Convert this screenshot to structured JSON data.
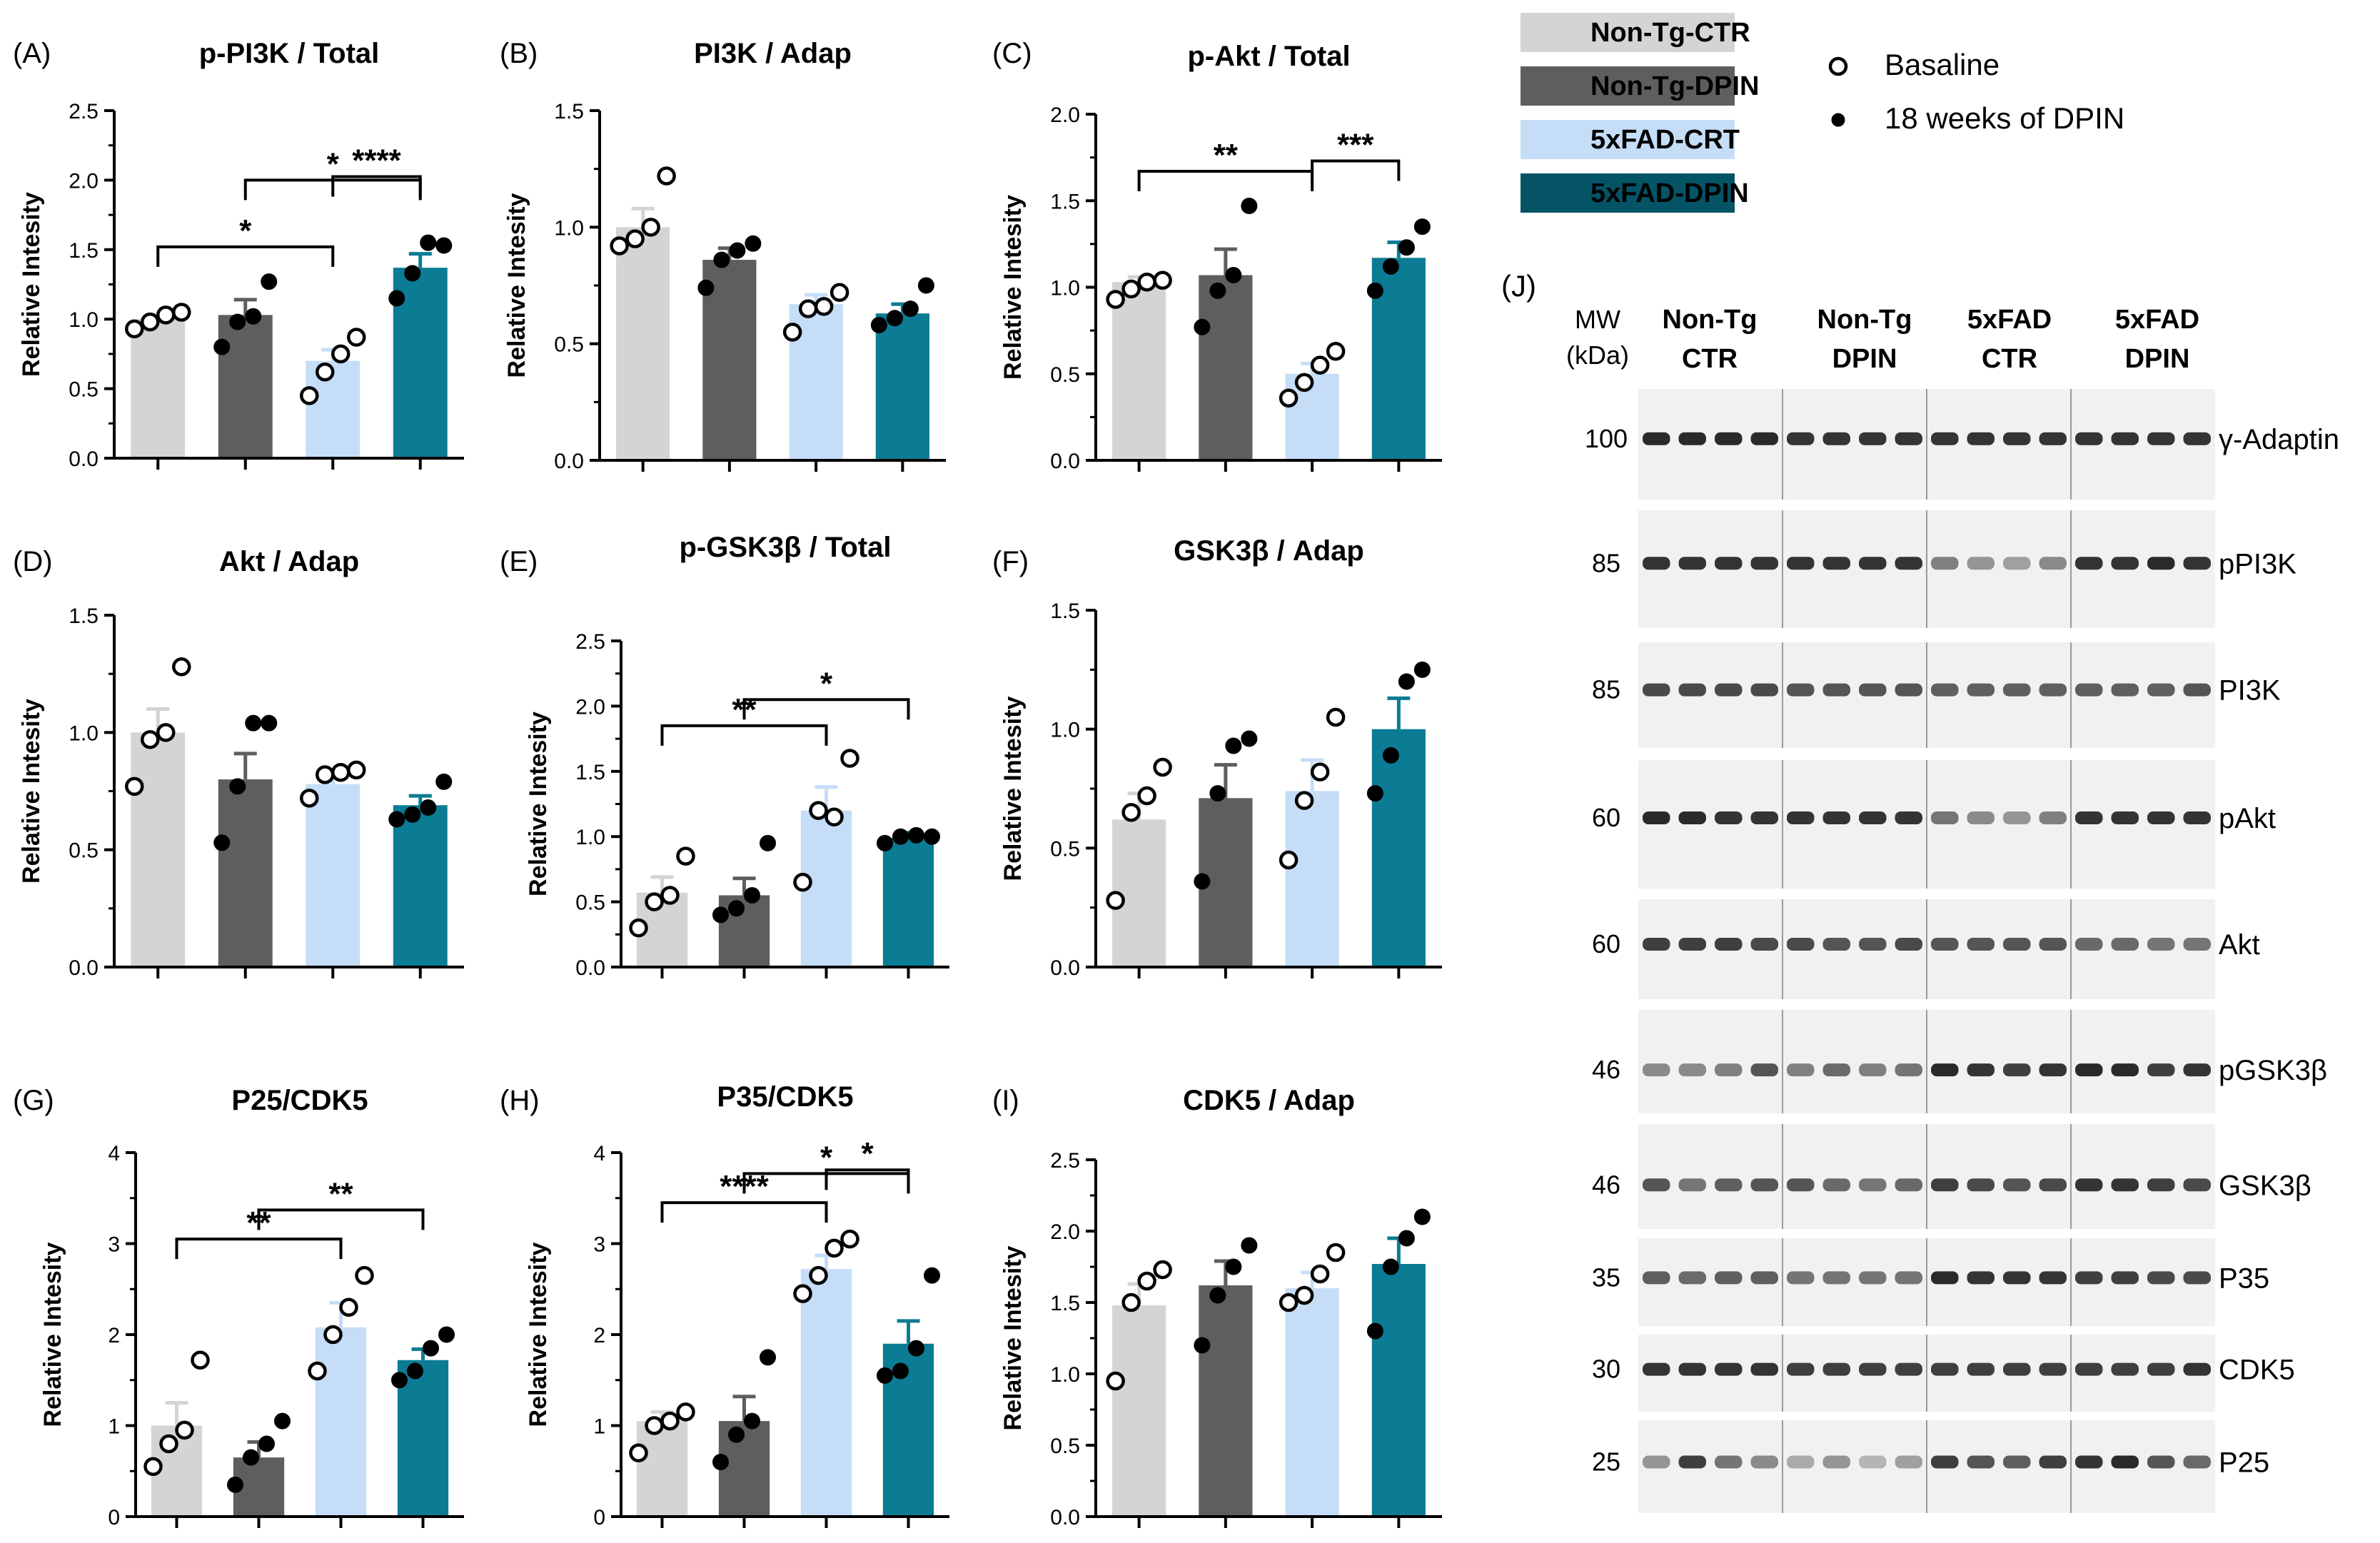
{
  "y_axis_label": "Relative Intesity",
  "groups": [
    "Non-Tg-CTR",
    "Non-Tg-DPIN",
    "5xFAD-CRT",
    "5xFAD-DPIN"
  ],
  "colors": {
    "g1": "#d4d4d4",
    "g2": "#5e5e5e",
    "g3": "#c5ddf7",
    "g4": "#0b7c93",
    "g4_dark": "#045466",
    "lane_sep": "#9a9a9a"
  },
  "legend": {
    "groups": [
      {
        "label": "Non-Tg-CTR",
        "color": "#d4d4d4"
      },
      {
        "label": "Non-Tg-DPIN",
        "color": "#5e5e5e"
      },
      {
        "label": "5xFAD-CRT",
        "color": "#c5ddf7"
      },
      {
        "label": "5xFAD-DPIN",
        "color": "#045466"
      }
    ],
    "markers": [
      {
        "label": "Basaline",
        "marker": "open-circle"
      },
      {
        "label": "18 weeks of DPIN",
        "marker": "filled-circle"
      }
    ]
  },
  "chart_data": [
    {
      "panel": "(A)",
      "title": "p-PI3K / Total",
      "type": "bar",
      "ylim": [
        0,
        2.5
      ],
      "yticks": [
        "0.0",
        "0.5",
        "1.0",
        "1.5",
        "2.0",
        "2.5"
      ],
      "means": [
        1.0,
        1.03,
        0.7,
        1.37
      ],
      "sem": [
        0.03,
        0.11,
        0.08,
        0.1
      ],
      "points": [
        [
          0.93,
          0.98,
          1.03,
          1.05
        ],
        [
          0.8,
          0.98,
          1.02,
          1.27
        ],
        [
          0.45,
          0.62,
          0.75,
          0.87
        ],
        [
          1.15,
          1.33,
          1.55,
          1.53
        ]
      ],
      "significance": [
        {
          "from": 0,
          "to": 2,
          "label": "*"
        },
        {
          "from": 2,
          "to": 3,
          "label": "****"
        },
        {
          "from": 1,
          "to": 3,
          "label": "*"
        }
      ]
    },
    {
      "panel": "(B)",
      "title": "PI3K / Adap",
      "type": "bar",
      "ylim": [
        0,
        1.5
      ],
      "yticks": [
        "0.0",
        "0.5",
        "1.0",
        "1.5"
      ],
      "means": [
        1.0,
        0.86,
        0.67,
        0.63
      ],
      "sem": [
        0.08,
        0.05,
        0.04,
        0.04
      ],
      "points": [
        [
          0.92,
          0.95,
          1.0,
          1.22
        ],
        [
          0.74,
          0.86,
          0.9,
          0.93
        ],
        [
          0.55,
          0.65,
          0.66,
          0.72
        ],
        [
          0.58,
          0.61,
          0.65,
          0.75
        ]
      ],
      "significance": []
    },
    {
      "panel": "(C)",
      "title": "p-Akt / Total",
      "type": "bar",
      "ylim": [
        0,
        2.0
      ],
      "yticks": [
        "0.0",
        "0.5",
        "1.0",
        "1.5",
        "2.0"
      ],
      "means": [
        1.03,
        1.07,
        0.5,
        1.17
      ],
      "sem": [
        0.03,
        0.15,
        0.06,
        0.09
      ],
      "points": [
        [
          0.93,
          0.99,
          1.03,
          1.04
        ],
        [
          0.77,
          0.98,
          1.07,
          1.47
        ],
        [
          0.36,
          0.45,
          0.55,
          0.63
        ],
        [
          0.98,
          1.12,
          1.23,
          1.35
        ]
      ],
      "significance": [
        {
          "from": 0,
          "to": 2,
          "label": "**"
        },
        {
          "from": 2,
          "to": 3,
          "label": "***"
        }
      ]
    },
    {
      "panel": "(D)",
      "title": "Akt / Adap",
      "type": "bar",
      "ylim": [
        0,
        1.5
      ],
      "yticks": [
        "0.0",
        "0.5",
        "1.0",
        "1.5"
      ],
      "means": [
        1.0,
        0.8,
        0.78,
        0.69
      ],
      "sem": [
        0.1,
        0.11,
        0.04,
        0.04
      ],
      "points": [
        [
          0.77,
          0.97,
          1.0,
          1.28
        ],
        [
          0.53,
          0.77,
          1.04,
          1.04
        ],
        [
          0.72,
          0.82,
          0.83,
          0.84
        ],
        [
          0.63,
          0.65,
          0.68,
          0.79
        ]
      ],
      "significance": []
    },
    {
      "panel": "(E)",
      "title": "p-GSK3β / Total",
      "type": "bar",
      "ylim": [
        0,
        2.5
      ],
      "yticks": [
        "0.0",
        "0.5",
        "1.0",
        "1.5",
        "2.0",
        "2.5"
      ],
      "means": [
        0.57,
        0.55,
        1.2,
        0.99
      ],
      "sem": [
        0.12,
        0.13,
        0.18,
        0.04
      ],
      "points": [
        [
          0.3,
          0.5,
          0.55,
          0.85
        ],
        [
          0.4,
          0.45,
          0.55,
          0.95
        ],
        [
          0.65,
          1.2,
          1.15,
          1.6
        ],
        [
          0.95,
          1.0,
          1.01,
          1.0
        ]
      ],
      "significance": [
        {
          "from": 0,
          "to": 2,
          "label": "**"
        },
        {
          "from": 1,
          "to": 3,
          "label": "*"
        }
      ]
    },
    {
      "panel": "(F)",
      "title": "GSK3β / Adap",
      "type": "bar",
      "ylim": [
        0,
        1.5
      ],
      "yticks": [
        "0.0",
        "0.5",
        "1.0",
        "1.5"
      ],
      "means": [
        0.62,
        0.71,
        0.74,
        1.0
      ],
      "sem": [
        0.11,
        0.14,
        0.13,
        0.13
      ],
      "points": [
        [
          0.28,
          0.65,
          0.72,
          0.84
        ],
        [
          0.36,
          0.73,
          0.93,
          0.96
        ],
        [
          0.45,
          0.7,
          0.82,
          1.05
        ],
        [
          0.73,
          0.89,
          1.2,
          1.25
        ]
      ],
      "significance": []
    },
    {
      "panel": "(G)",
      "title": "P25/CDK5",
      "type": "bar",
      "ylim": [
        0,
        4
      ],
      "yticks": [
        "0",
        "1",
        "2",
        "3",
        "4"
      ],
      "means": [
        1.0,
        0.65,
        2.08,
        1.72
      ],
      "sem": [
        0.25,
        0.17,
        0.27,
        0.12
      ],
      "points": [
        [
          0.55,
          0.8,
          0.95,
          1.72
        ],
        [
          0.35,
          0.65,
          0.8,
          1.05
        ],
        [
          1.6,
          2.0,
          2.3,
          2.65
        ],
        [
          1.5,
          1.6,
          1.85,
          2.0
        ]
      ],
      "significance": [
        {
          "from": 0,
          "to": 2,
          "label": "**"
        },
        {
          "from": 1,
          "to": 3,
          "label": "**"
        }
      ]
    },
    {
      "panel": "(H)",
      "title": "P35/CDK5",
      "type": "bar",
      "ylim": [
        0,
        4
      ],
      "yticks": [
        "0",
        "1",
        "2",
        "3",
        "4"
      ],
      "means": [
        1.05,
        1.05,
        2.72,
        1.9
      ],
      "sem": [
        0.1,
        0.27,
        0.15,
        0.25
      ],
      "points": [
        [
          0.7,
          1.0,
          1.05,
          1.15
        ],
        [
          0.6,
          0.9,
          1.05,
          1.75
        ],
        [
          2.45,
          2.65,
          2.95,
          3.05
        ],
        [
          1.55,
          1.6,
          1.85,
          2.65
        ]
      ],
      "significance": [
        {
          "from": 0,
          "to": 2,
          "label": "****"
        },
        {
          "from": 2,
          "to": 3,
          "label": "*"
        },
        {
          "from": 1,
          "to": 3,
          "label": "*"
        }
      ]
    },
    {
      "panel": "(I)",
      "title": "CDK5 / Adap",
      "type": "bar",
      "ylim": [
        0,
        2.5
      ],
      "yticks": [
        "0.0",
        "0.5",
        "1.0",
        "1.5",
        "2.0",
        "2.5"
      ],
      "means": [
        1.48,
        1.62,
        1.6,
        1.77
      ],
      "sem": [
        0.15,
        0.17,
        0.11,
        0.18
      ],
      "points": [
        [
          0.95,
          1.5,
          1.65,
          1.73
        ],
        [
          1.2,
          1.55,
          1.75,
          1.9
        ],
        [
          1.5,
          1.55,
          1.7,
          1.85
        ],
        [
          1.3,
          1.75,
          1.95,
          2.1
        ]
      ],
      "significance": []
    }
  ],
  "blot": {
    "panel": "(J)",
    "mw_header": [
      "MW",
      "(kDa)"
    ],
    "groups": [
      [
        "Non-Tg",
        "CTR"
      ],
      [
        "Non-Tg",
        "DPIN"
      ],
      [
        "5xFAD",
        "CTR"
      ],
      [
        "5xFAD",
        "DPIN"
      ]
    ],
    "rows": [
      {
        "mw": "100",
        "label": "γ-Adaptin",
        "intensity": [
          0.9,
          0.9,
          0.9,
          0.9,
          0.85,
          0.85,
          0.85,
          0.85,
          0.85,
          0.85,
          0.85,
          0.85,
          0.85,
          0.85,
          0.85,
          0.85
        ]
      },
      {
        "mw": "85",
        "label": "pPI3K",
        "intensity": [
          0.85,
          0.85,
          0.85,
          0.85,
          0.85,
          0.85,
          0.85,
          0.85,
          0.5,
          0.4,
          0.35,
          0.45,
          0.85,
          0.85,
          0.9,
          0.85
        ]
      },
      {
        "mw": "85",
        "label": "PI3K",
        "intensity": [
          0.75,
          0.75,
          0.75,
          0.75,
          0.7,
          0.7,
          0.7,
          0.7,
          0.65,
          0.65,
          0.65,
          0.65,
          0.65,
          0.65,
          0.65,
          0.7
        ]
      },
      {
        "mw": "60",
        "label": "pAkt",
        "intensity": [
          0.9,
          0.9,
          0.85,
          0.85,
          0.85,
          0.85,
          0.85,
          0.85,
          0.55,
          0.45,
          0.4,
          0.5,
          0.85,
          0.85,
          0.85,
          0.85
        ]
      },
      {
        "mw": "60",
        "label": "Akt",
        "intensity": [
          0.8,
          0.8,
          0.8,
          0.75,
          0.75,
          0.7,
          0.7,
          0.75,
          0.7,
          0.7,
          0.7,
          0.7,
          0.6,
          0.6,
          0.55,
          0.55
        ]
      },
      {
        "mw": "46",
        "label": "pGSK3β",
        "intensity": [
          0.45,
          0.45,
          0.5,
          0.7,
          0.5,
          0.6,
          0.5,
          0.55,
          0.9,
          0.85,
          0.8,
          0.85,
          0.9,
          0.9,
          0.8,
          0.85
        ]
      },
      {
        "mw": "46",
        "label": "GSK3β",
        "intensity": [
          0.7,
          0.55,
          0.65,
          0.7,
          0.7,
          0.6,
          0.55,
          0.6,
          0.8,
          0.75,
          0.7,
          0.75,
          0.85,
          0.85,
          0.8,
          0.75
        ]
      },
      {
        "mw": "35",
        "label": "P35",
        "intensity": [
          0.65,
          0.6,
          0.65,
          0.65,
          0.55,
          0.55,
          0.55,
          0.55,
          0.9,
          0.85,
          0.85,
          0.85,
          0.8,
          0.8,
          0.75,
          0.75
        ]
      },
      {
        "mw": "30",
        "label": "CDK5",
        "intensity": [
          0.85,
          0.85,
          0.85,
          0.85,
          0.8,
          0.8,
          0.8,
          0.8,
          0.8,
          0.8,
          0.8,
          0.8,
          0.8,
          0.8,
          0.8,
          0.85
        ]
      },
      {
        "mw": "25",
        "label": "P25",
        "intensity": [
          0.4,
          0.8,
          0.55,
          0.45,
          0.3,
          0.4,
          0.25,
          0.35,
          0.8,
          0.7,
          0.65,
          0.8,
          0.85,
          0.9,
          0.7,
          0.6
        ]
      }
    ]
  }
}
